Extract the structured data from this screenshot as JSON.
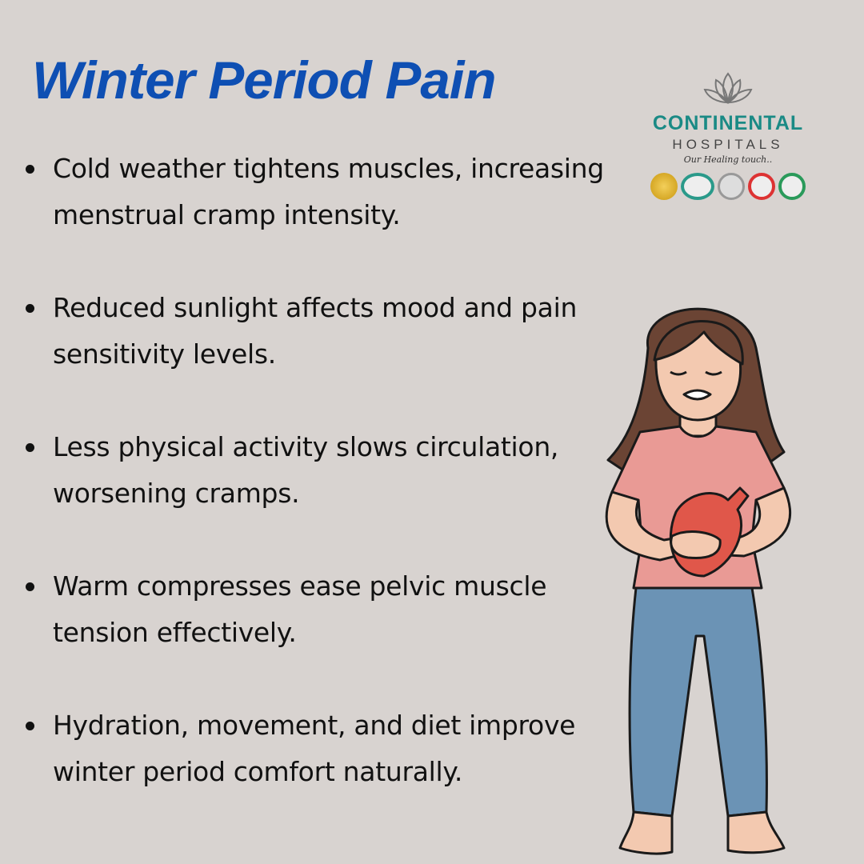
{
  "title": "Winter Period Pain",
  "bullets": [
    "Cold weather tightens muscles, increasing menstrual cramp intensity.",
    "Reduced sunlight affects mood and pain sensitivity levels.",
    "Less physical activity slows circulation, worsening cramps.",
    "Warm compresses ease pelvic muscle tension effectively.",
    "Hydration, movement, and diet improve winter period comfort naturally."
  ],
  "logo": {
    "brand": "CONTINENTAL",
    "sub": "HOSPITALS",
    "tagline": "Our Healing touch..",
    "icon": "lotus-icon"
  },
  "colors": {
    "background": "#d8d3d0",
    "title": "#0e4fb3",
    "brand": "#1a8a85"
  },
  "illustration": "woman-with-hot-water-bottle"
}
